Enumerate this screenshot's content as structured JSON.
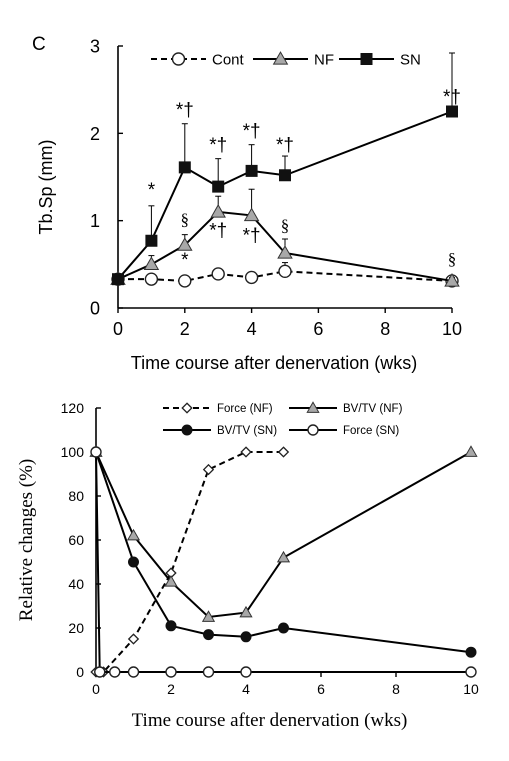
{
  "chart_data": [
    {
      "type": "line",
      "panel_label": "C",
      "ylabel": "Tb.Sp (mm)",
      "xlabel": "Time course after denervation (wks)",
      "xlim": [
        0,
        10
      ],
      "ylim": [
        0,
        3
      ],
      "xticks": [
        0,
        2,
        4,
        6,
        8,
        10
      ],
      "yticks": [
        0,
        1,
        2,
        3
      ],
      "legend_position": "top",
      "series": [
        {
          "name": "Cont",
          "marker": "circle-open",
          "line": "dashed",
          "x": [
            0,
            1,
            2,
            3,
            4,
            5,
            10
          ],
          "y": [
            0.33,
            0.33,
            0.31,
            0.39,
            0.35,
            0.42,
            0.31
          ],
          "err": [
            0,
            0.04,
            0.03,
            0.04,
            0.03,
            0.1,
            0.03
          ]
        },
        {
          "name": "NF",
          "marker": "triangle-gray",
          "line": "solid",
          "x": [
            0,
            1,
            2,
            3,
            4,
            5,
            10
          ],
          "y": [
            0.33,
            0.5,
            0.72,
            1.1,
            1.06,
            0.63,
            0.31
          ],
          "err": [
            0,
            0.1,
            0.12,
            0.18,
            0.3,
            0.16,
            0.04
          ]
        },
        {
          "name": "SN",
          "marker": "square-filled",
          "line": "solid",
          "x": [
            0,
            1,
            2,
            3,
            4,
            5,
            10
          ],
          "y": [
            0.33,
            0.77,
            1.61,
            1.39,
            1.57,
            1.52,
            2.25
          ],
          "err": [
            0,
            0.4,
            0.5,
            0.32,
            0.3,
            0.22,
            0.67
          ]
        }
      ],
      "annotations": [
        {
          "x": 1,
          "y": 1.28,
          "text": "*",
          "font": "sans"
        },
        {
          "x": 2,
          "y": 2.2,
          "text": "*†",
          "font": "sans"
        },
        {
          "x": 3,
          "y": 1.8,
          "text": "*†",
          "font": "sans"
        },
        {
          "x": 4,
          "y": 1.96,
          "text": "*†",
          "font": "sans"
        },
        {
          "x": 5,
          "y": 1.8,
          "text": "*†",
          "font": "sans"
        },
        {
          "x": 10,
          "y": 2.35,
          "text": "*†",
          "font": "sans"
        },
        {
          "x": 2,
          "y": 0.95,
          "text": "§",
          "font": "serif"
        },
        {
          "x": 2,
          "y": 0.48,
          "text": "*",
          "font": "sans"
        },
        {
          "x": 3,
          "y": 0.82,
          "text": "*†",
          "font": "sans"
        },
        {
          "x": 4,
          "y": 0.76,
          "text": "*†",
          "font": "sans"
        },
        {
          "x": 5,
          "y": 0.88,
          "text": "§",
          "font": "serif"
        },
        {
          "x": 10,
          "y": 0.5,
          "text": "§",
          "font": "serif"
        }
      ]
    },
    {
      "type": "line",
      "ylabel": "Relative changes (%)",
      "xlabel": "Time course after denervation (wks)",
      "xlim": [
        0,
        10
      ],
      "ylim": [
        0,
        120
      ],
      "xticks": [
        0,
        2,
        4,
        6,
        8,
        10
      ],
      "yticks": [
        0,
        20,
        40,
        60,
        80,
        100,
        120
      ],
      "legend_position": "top",
      "series": [
        {
          "name": "Force (NF)",
          "marker": "diamond-open",
          "line": "dashed",
          "x": [
            0,
            0.2,
            1,
            2,
            3,
            4,
            5
          ],
          "y": [
            0,
            0,
            15,
            45,
            92,
            100,
            100
          ]
        },
        {
          "name": "BV/TV (NF)",
          "marker": "triangle-gray",
          "line": "solid",
          "x": [
            0,
            1,
            2,
            3,
            4,
            5,
            10
          ],
          "y": [
            100,
            62,
            41,
            25,
            27,
            52,
            100
          ]
        },
        {
          "name": "BV/TV (SN)",
          "marker": "circle-filled",
          "line": "solid",
          "x": [
            0,
            1,
            2,
            3,
            4,
            5,
            10
          ],
          "y": [
            100,
            50,
            21,
            17,
            16,
            20,
            9
          ]
        },
        {
          "name": "Force (SN)",
          "marker": "circle-open",
          "line": "solid",
          "x": [
            0,
            0.1,
            0.5,
            1,
            2,
            3,
            4,
            10
          ],
          "y": [
            100,
            0,
            0,
            0,
            0,
            0,
            0,
            0
          ]
        }
      ]
    }
  ]
}
